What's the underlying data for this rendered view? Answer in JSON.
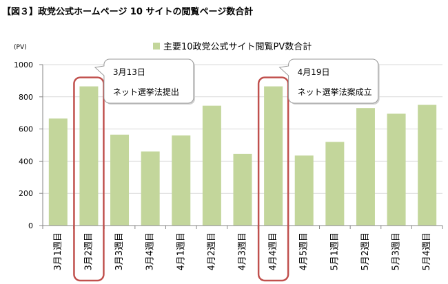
{
  "chart_data": {
    "type": "bar",
    "title": "【図３】政党公式ホームページ 10 サイトの閲覧ページ数合計",
    "xlabel": "",
    "ylabel": "(PV)",
    "ylim": [
      0,
      1000
    ],
    "yticks": [
      0,
      200,
      400,
      600,
      800,
      1000
    ],
    "grid": true,
    "legend": "top-center",
    "categories": [
      "3月1週目",
      "3月2週目",
      "3月3週目",
      "3月4週目",
      "4月1週目",
      "4月2週目",
      "4月3週目",
      "4月4週目",
      "4月5週目",
      "5月1週目",
      "5月2週目",
      "5月3週目",
      "5月4週目"
    ],
    "series": [
      {
        "name": "主要10政党公式サイト閲覧PV数合計",
        "color": "#c3d69b",
        "values": [
          665,
          865,
          565,
          460,
          560,
          745,
          445,
          865,
          435,
          520,
          730,
          695,
          750
        ]
      }
    ],
    "annotations": [
      {
        "category": "3月2週目",
        "lines": [
          "3月13日",
          "ネット選挙法提出"
        ]
      },
      {
        "category": "4月4週目",
        "lines": [
          "4月19日",
          "ネット選挙法案成立"
        ]
      }
    ]
  },
  "colors": {
    "highlight": "#c0504d",
    "grid": "#d9d9d9",
    "axis": "#868686",
    "callout_border": "#9a9a9a"
  }
}
